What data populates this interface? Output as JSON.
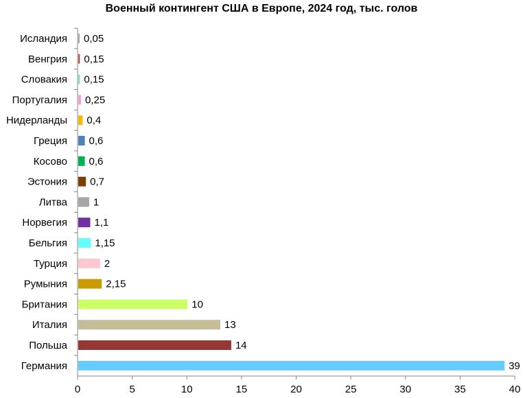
{
  "chart_data": {
    "type": "bar",
    "orientation": "horizontal",
    "title": "Военный контингент США в Европе, 2024 год, тыс. голов",
    "categories": [
      "Исландия",
      "Венгрия",
      "Словакия",
      "Португалия",
      "Нидерланды",
      "Греция",
      "Косово",
      "Эстония",
      "Литва",
      "Норвегия",
      "Бельгия",
      "Турция",
      "Румыния",
      "Британия",
      "Италия",
      "Польша",
      "Германия"
    ],
    "values": [
      0.05,
      0.15,
      0.15,
      0.25,
      0.4,
      0.6,
      0.6,
      0.7,
      1,
      1.1,
      1.15,
      2,
      2.15,
      10,
      13,
      14,
      39
    ],
    "value_labels": [
      "0,05",
      "0,15",
      "0,15",
      "0,25",
      "0,4",
      "0,6",
      "0,6",
      "0,7",
      "1",
      "1,1",
      "1,15",
      "2",
      "2,15",
      "10",
      "13",
      "14",
      "39"
    ],
    "colors": [
      "#A6A6A6",
      "#C0504D",
      "#7FE0C0",
      "#F2A0D8",
      "#F5B800",
      "#4F81BD",
      "#00B050",
      "#7B3F00",
      "#A6A6A6",
      "#7030A0",
      "#66FFFF",
      "#FFC7CE",
      "#C89B00",
      "#CCFF66",
      "#C4BD97",
      "#953735",
      "#66CCFF"
    ],
    "xlim": [
      0,
      40
    ],
    "x_ticks": [
      "0",
      "5",
      "10",
      "15",
      "20",
      "25",
      "30",
      "35",
      "40"
    ],
    "grid": false,
    "legend": "none"
  }
}
